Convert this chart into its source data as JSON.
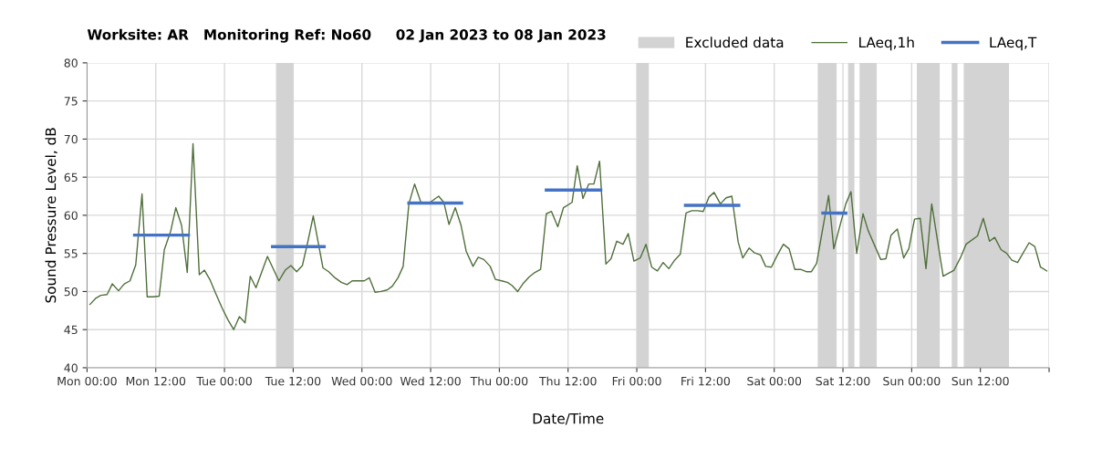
{
  "chart_data": {
    "type": "line",
    "title": "Worksite: AR   Monitoring Ref: No60     02 Jan 2023 to 08 Jan 2023",
    "xlabel": "Date/Time",
    "ylabel": "Sound Pressure Level, dB",
    "xlim": [
      "2023-01-02T00:00",
      "2023-01-09T00:00"
    ],
    "ylim": [
      40,
      80
    ],
    "xticks": [
      {
        "value": "2023-01-02T00:00",
        "label": "Mon 00:00"
      },
      {
        "value": "2023-01-02T12:00",
        "label": "Mon 12:00"
      },
      {
        "value": "2023-01-03T00:00",
        "label": "Tue 00:00"
      },
      {
        "value": "2023-01-03T12:00",
        "label": "Tue 12:00"
      },
      {
        "value": "2023-01-04T00:00",
        "label": "Wed 00:00"
      },
      {
        "value": "2023-01-04T12:00",
        "label": "Wed 12:00"
      },
      {
        "value": "2023-01-05T00:00",
        "label": "Thu 00:00"
      },
      {
        "value": "2023-01-05T12:00",
        "label": "Thu 12:00"
      },
      {
        "value": "2023-01-06T00:00",
        "label": "Fri 00:00"
      },
      {
        "value": "2023-01-06T12:00",
        "label": "Fri 12:00"
      },
      {
        "value": "2023-01-07T00:00",
        "label": "Sat 00:00"
      },
      {
        "value": "2023-01-07T12:00",
        "label": "Sat 12:00"
      },
      {
        "value": "2023-01-08T00:00",
        "label": "Sun 00:00"
      },
      {
        "value": "2023-01-08T12:00",
        "label": "Sun 12:00"
      },
      {
        "value": "2023-01-09T00:00",
        "label": null
      }
    ],
    "yticks": [
      40,
      45,
      50,
      55,
      60,
      65,
      70,
      75,
      80
    ],
    "grid": true,
    "legend": "top right",
    "marker": "none",
    "line_style": "solid",
    "bands": [
      {
        "axis": "x",
        "from": "2023-01-03T09:00",
        "to": "2023-01-03T12:00",
        "label": "Excluded data",
        "color": "#d3d3d3"
      },
      {
        "axis": "x",
        "from": "2023-01-06T00:00",
        "to": "2023-01-06T02:06",
        "color": "#d3d3d3"
      },
      {
        "axis": "x",
        "from": "2023-01-07T07:36",
        "to": "2023-01-07T10:54",
        "color": "#d3d3d3"
      },
      {
        "axis": "x",
        "from": "2023-01-07T12:54",
        "to": "2023-01-07T14:00",
        "color": "#d3d3d3"
      },
      {
        "axis": "x",
        "from": "2023-01-07T14:54",
        "to": "2023-01-07T17:54",
        "color": "#d3d3d3"
      },
      {
        "axis": "x",
        "from": "2023-01-08T00:54",
        "to": "2023-01-08T04:54",
        "color": "#d3d3d3"
      },
      {
        "axis": "x",
        "from": "2023-01-08T07:00",
        "to": "2023-01-08T08:00",
        "color": "#d3d3d3"
      },
      {
        "axis": "x",
        "from": "2023-01-08T09:06",
        "to": "2023-01-08T17:00",
        "color": "#d3d3d3"
      }
    ],
    "series": [
      {
        "name": "LAeq,1h",
        "color": "#4f6f3a",
        "x": [
          "2023-01-02T00:30",
          "2023-01-02T01:30",
          "2023-01-02T02:24",
          "2023-01-02T03:30",
          "2023-01-02T04:24",
          "2023-01-02T05:30",
          "2023-01-02T06:30",
          "2023-01-02T07:30",
          "2023-01-02T08:30",
          "2023-01-02T09:36",
          "2023-01-02T10:30",
          "2023-01-02T11:30",
          "2023-01-02T12:36",
          "2023-01-02T13:30",
          "2023-01-02T14:36",
          "2023-01-02T15:30",
          "2023-01-02T16:30",
          "2023-01-02T17:30",
          "2023-01-02T18:30",
          "2023-01-02T19:36",
          "2023-01-02T20:30",
          "2023-01-02T21:30",
          "2023-01-02T22:30",
          "2023-01-02T23:36",
          "2023-01-03T00:36",
          "2023-01-03T01:36",
          "2023-01-03T02:36",
          "2023-01-03T03:36",
          "2023-01-03T04:30",
          "2023-01-03T05:30",
          "2023-01-03T07:30",
          "2023-01-03T09:30",
          "2023-01-03T10:36",
          "2023-01-03T11:36",
          "2023-01-03T12:36",
          "2023-01-03T13:36",
          "2023-01-03T14:36",
          "2023-01-03T15:30",
          "2023-01-03T17:12",
          "2023-01-03T18:12",
          "2023-01-03T19:18",
          "2023-01-03T20:24",
          "2023-01-03T21:24",
          "2023-01-03T22:18",
          "2023-01-03T23:18",
          "2023-01-04T00:24",
          "2023-01-04T01:18",
          "2023-01-04T02:18",
          "2023-01-04T03:18",
          "2023-01-04T04:24",
          "2023-01-04T05:18",
          "2023-01-04T06:18",
          "2023-01-04T07:12",
          "2023-01-04T08:12",
          "2023-01-04T09:12",
          "2023-01-04T10:18",
          "2023-01-04T11:54",
          "2023-01-04T13:24",
          "2023-01-04T14:18",
          "2023-01-04T15:12",
          "2023-01-04T16:18",
          "2023-01-04T17:18",
          "2023-01-04T18:12",
          "2023-01-04T19:24",
          "2023-01-04T20:18",
          "2023-01-04T21:18",
          "2023-01-04T22:24",
          "2023-01-04T23:18",
          "2023-01-05T00:24",
          "2023-01-05T01:24",
          "2023-01-05T02:12",
          "2023-01-05T03:12",
          "2023-01-05T04:06",
          "2023-01-05T05:12",
          "2023-01-05T06:12",
          "2023-01-05T07:12",
          "2023-01-05T08:12",
          "2023-01-05T09:06",
          "2023-01-05T10:12",
          "2023-01-05T11:12",
          "2023-01-05T12:42",
          "2023-01-05T13:36",
          "2023-01-05T14:36",
          "2023-01-05T15:36",
          "2023-01-05T16:30",
          "2023-01-05T17:30",
          "2023-01-05T18:36",
          "2023-01-05T19:30",
          "2023-01-05T20:30",
          "2023-01-05T21:36",
          "2023-01-05T22:30",
          "2023-01-05T23:30",
          "2023-01-06T00:36",
          "2023-01-06T01:36",
          "2023-01-06T02:36",
          "2023-01-06T03:36",
          "2023-01-06T04:36",
          "2023-01-06T05:36",
          "2023-01-06T06:36",
          "2023-01-06T07:36",
          "2023-01-06T08:36",
          "2023-01-06T09:36",
          "2023-01-06T10:36",
          "2023-01-06T11:36",
          "2023-01-06T12:36",
          "2023-01-06T13:30",
          "2023-01-06T14:36",
          "2023-01-06T15:36",
          "2023-01-06T16:36",
          "2023-01-06T17:42",
          "2023-01-06T18:30",
          "2023-01-06T19:36",
          "2023-01-06T20:30",
          "2023-01-06T21:36",
          "2023-01-06T22:30",
          "2023-01-06T23:30",
          "2023-01-07T00:30",
          "2023-01-07T01:36",
          "2023-01-07T02:36",
          "2023-01-07T03:36",
          "2023-01-07T04:36",
          "2023-01-07T05:36",
          "2023-01-07T06:30",
          "2023-01-07T07:24",
          "2023-01-07T09:30",
          "2023-01-07T10:24",
          "2023-01-07T12:30",
          "2023-01-07T13:24",
          "2023-01-07T14:24",
          "2023-01-07T15:30",
          "2023-01-07T16:24",
          "2023-01-07T18:36",
          "2023-01-07T19:30",
          "2023-01-07T20:24",
          "2023-01-07T21:30",
          "2023-01-07T22:36",
          "2023-01-07T23:30",
          "2023-01-08T00:30",
          "2023-01-08T01:30",
          "2023-01-08T02:30",
          "2023-01-08T03:30",
          "2023-01-08T05:30",
          "2023-01-08T07:24",
          "2023-01-08T08:30",
          "2023-01-08T09:30",
          "2023-01-08T11:30",
          "2023-01-08T12:30",
          "2023-01-08T13:36",
          "2023-01-08T14:30",
          "2023-01-08T15:36",
          "2023-01-08T16:36",
          "2023-01-08T17:30",
          "2023-01-08T18:30",
          "2023-01-08T20:30",
          "2023-01-08T21:30",
          "2023-01-08T22:30",
          "2023-01-08T23:36"
        ],
        "values": [
          48.3,
          49.1,
          49.5,
          49.6,
          51.0,
          50.1,
          51.0,
          51.4,
          53.5,
          62.8,
          49.3,
          49.3,
          49.4,
          55.5,
          57.9,
          61.0,
          58.7,
          52.5,
          69.4,
          52.2,
          52.8,
          51.5,
          49.7,
          47.8,
          46.3,
          45.0,
          46.7,
          45.9,
          52.0,
          50.5,
          54.6,
          51.4,
          52.8,
          53.4,
          52.6,
          53.4,
          56.7,
          59.9,
          53.1,
          52.6,
          51.8,
          51.2,
          50.9,
          51.4,
          51.4,
          51.4,
          51.8,
          49.9,
          50.0,
          50.2,
          50.7,
          51.8,
          53.3,
          61.5,
          64.1,
          61.7,
          61.7,
          62.5,
          61.7,
          58.8,
          61.0,
          58.7,
          55.3,
          53.3,
          54.5,
          54.2,
          53.3,
          51.6,
          51.4,
          51.2,
          50.8,
          50.0,
          51.0,
          51.9,
          52.5,
          52.9,
          60.2,
          60.5,
          58.5,
          61.0,
          61.7,
          66.5,
          62.2,
          64.1,
          64.1,
          67.1,
          53.6,
          54.3,
          56.6,
          56.2,
          57.6,
          54.0,
          54.4,
          56.2,
          53.2,
          52.7,
          53.8,
          53.0,
          54.1,
          54.9,
          60.3,
          60.6,
          60.6,
          60.5,
          62.4,
          63.0,
          61.5,
          62.3,
          62.5,
          56.5,
          54.4,
          55.7,
          55.1,
          54.8,
          53.3,
          53.2,
          54.7,
          56.2,
          55.6,
          52.9,
          52.9,
          52.6,
          52.6,
          53.7,
          62.6,
          55.6,
          61.5,
          63.1,
          55.0,
          60.2,
          58.0,
          54.2,
          54.3,
          57.4,
          58.2,
          54.4,
          55.6,
          59.5,
          59.6,
          53.0,
          61.5,
          52.0,
          52.8,
          54.4,
          56.2,
          57.3,
          59.6,
          56.6,
          57.1,
          55.5,
          55.0,
          54.1,
          53.8,
          56.4,
          55.9,
          53.2,
          52.7
        ]
      },
      {
        "name": "LAeq,T",
        "color": "#4472c4",
        "x": [
          "2023-01-02T08:18",
          "2023-01-02T17:42",
          "2023-01-03T01:00",
          "2023-01-03T08:24",
          "2023-01-03T17:24",
          "2023-01-04T02:00",
          "2023-01-04T08:12",
          "2023-01-04T17:24",
          "2023-01-05T03:00",
          "2023-01-05T08:12",
          "2023-01-05T17:42",
          "2023-01-06T04:00",
          "2023-01-06T08:30",
          "2023-01-06T17:48",
          "2023-01-07T00:00",
          "2023-01-07T08:30",
          "2023-01-07T12:30"
        ],
        "values": [
          57.4,
          57.4,
          null,
          55.9,
          55.9,
          null,
          61.6,
          61.6,
          null,
          63.3,
          63.3,
          null,
          61.3,
          61.3,
          null,
          60.3,
          60.3
        ]
      }
    ]
  }
}
